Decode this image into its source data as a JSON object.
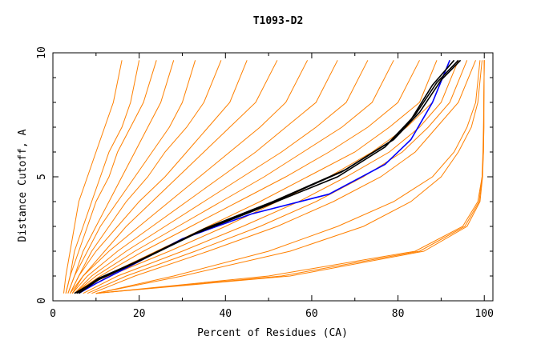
{
  "chart_data": {
    "type": "line",
    "title": "T1093-D2",
    "xlabel": "Percent of Residues (CA)",
    "ylabel": "Distance Cutoff, A",
    "xlim": [
      0,
      102
    ],
    "ylim": [
      0,
      10
    ],
    "xticks": [
      0,
      20,
      40,
      60,
      80,
      100
    ],
    "yticks": [
      0,
      5,
      10
    ],
    "grid": false,
    "legend": "none",
    "colors": {
      "bundle": "#ff8000",
      "highlight_blue": "#0000ff",
      "highlight_black": "#000000"
    },
    "series": [
      {
        "color": "#ff8000",
        "x": [
          2.5,
          3,
          4,
          5,
          6,
          8,
          10,
          12,
          14,
          16
        ],
        "y": [
          0.3,
          1,
          2,
          3,
          4,
          5,
          6,
          7,
          8,
          9.7
        ]
      },
      {
        "color": "#ff8000",
        "x": [
          3,
          4,
          5,
          7,
          9,
          11,
          13,
          16,
          18,
          20
        ],
        "y": [
          0.3,
          1,
          2,
          3,
          4,
          5,
          6,
          7,
          8,
          9.7
        ]
      },
      {
        "color": "#ff8000",
        "x": [
          3,
          4,
          6,
          8,
          10,
          13,
          15,
          18,
          21,
          24
        ],
        "y": [
          0.3,
          1,
          2,
          3,
          4,
          5,
          6,
          7,
          8,
          9.7
        ]
      },
      {
        "color": "#ff8000",
        "x": [
          3.5,
          5,
          7,
          10,
          13,
          16,
          19,
          22,
          25,
          28
        ],
        "y": [
          0.3,
          1,
          2,
          3,
          4,
          5,
          6,
          7,
          8,
          9.7
        ]
      },
      {
        "color": "#ff8000",
        "x": [
          3.5,
          5,
          8,
          11,
          15,
          19,
          23,
          27,
          30,
          33
        ],
        "y": [
          0.3,
          1,
          2,
          3,
          4,
          5,
          6,
          7,
          8,
          9.7
        ]
      },
      {
        "color": "#ff8000",
        "x": [
          4,
          6,
          9,
          13,
          17,
          22,
          26,
          31,
          35,
          39
        ],
        "y": [
          0.3,
          1,
          2,
          3,
          4,
          5,
          6,
          7,
          8,
          9.7
        ]
      },
      {
        "color": "#ff8000",
        "x": [
          4,
          6,
          10,
          15,
          20,
          26,
          31,
          36,
          41,
          45
        ],
        "y": [
          0.3,
          1,
          2,
          3,
          4,
          5,
          6,
          7,
          8,
          9.7
        ]
      },
      {
        "color": "#ff8000",
        "x": [
          4,
          7,
          12,
          17,
          23,
          29,
          35,
          41,
          47,
          52
        ],
        "y": [
          0.3,
          1,
          2,
          3,
          4,
          5,
          6,
          7,
          8,
          9.7
        ]
      },
      {
        "color": "#ff8000",
        "x": [
          4.5,
          7,
          13,
          20,
          27,
          34,
          41,
          48,
          54,
          59
        ],
        "y": [
          0.3,
          1,
          2,
          3,
          4,
          5,
          6,
          7,
          8,
          9.7
        ]
      },
      {
        "color": "#ff8000",
        "x": [
          4.5,
          8,
          15,
          23,
          31,
          39,
          47,
          54,
          61,
          66
        ],
        "y": [
          0.3,
          1,
          2,
          3,
          4,
          5,
          6,
          7,
          8,
          9.7
        ]
      },
      {
        "color": "#ff8000",
        "x": [
          5,
          9,
          17,
          26,
          35,
          44,
          53,
          61,
          68,
          73
        ],
        "y": [
          0.3,
          1,
          2,
          3,
          4,
          5,
          6,
          7,
          8,
          9.7
        ]
      },
      {
        "color": "#ff8000",
        "x": [
          5,
          10,
          19,
          29,
          39,
          49,
          58,
          67,
          74,
          79
        ],
        "y": [
          0.3,
          1,
          2,
          3,
          4,
          5,
          6,
          7,
          8,
          9.7
        ]
      },
      {
        "color": "#ff8000",
        "x": [
          5,
          11,
          21,
          32,
          43,
          54,
          64,
          73,
          80,
          85
        ],
        "y": [
          0.3,
          1,
          2,
          3,
          4,
          5,
          6,
          7,
          8,
          9.7
        ]
      },
      {
        "color": "#ff8000",
        "x": [
          6,
          12,
          24,
          36,
          48,
          59,
          70,
          78,
          85,
          89
        ],
        "y": [
          0.3,
          1,
          2,
          3,
          4,
          5,
          6,
          7,
          8,
          9.7
        ]
      },
      {
        "color": "#ff8000",
        "x": [
          6,
          13,
          27,
          40,
          52,
          64,
          74,
          82,
          88,
          92
        ],
        "y": [
          0.3,
          1,
          2,
          3,
          4,
          5,
          6,
          7,
          8,
          9.7
        ]
      },
      {
        "color": "#ff8000",
        "x": [
          7,
          15,
          30,
          44,
          57,
          68,
          78,
          85,
          90,
          94
        ],
        "y": [
          0.3,
          1,
          2,
          3,
          4,
          5,
          6,
          7,
          8,
          9.7
        ]
      },
      {
        "color": "#ff8000",
        "x": [
          8,
          17,
          33,
          48,
          61,
          72,
          81,
          87,
          92,
          96
        ],
        "y": [
          0.3,
          1,
          2,
          3,
          4,
          5,
          6,
          7,
          8,
          9.7
        ]
      },
      {
        "color": "#ff8000",
        "x": [
          9,
          19,
          36,
          52,
          65,
          76,
          84,
          89,
          94,
          98
        ],
        "y": [
          0.3,
          1,
          2,
          3,
          4,
          5,
          6,
          7,
          8,
          9.7
        ]
      },
      {
        "color": "#ff8000",
        "x": [
          10,
          28,
          50,
          66,
          79,
          88,
          93,
          96,
          98,
          99
        ],
        "y": [
          0.3,
          1,
          2,
          3,
          4,
          5,
          6,
          7,
          8,
          9.7
        ]
      },
      {
        "color": "#ff8000",
        "x": [
          10,
          30,
          55,
          72,
          83,
          90,
          94,
          97,
          98.5,
          99.5
        ],
        "y": [
          0.3,
          1,
          2,
          3,
          4,
          5,
          6,
          7,
          8,
          9.7
        ]
      },
      {
        "color": "#ff8000",
        "x": [
          10,
          50,
          84,
          95,
          98.5,
          99.5,
          99.8,
          99.9,
          99.9,
          100
        ],
        "y": [
          0.3,
          1,
          2,
          3,
          4,
          5,
          6,
          7,
          8,
          9.7
        ]
      },
      {
        "color": "#ff8000",
        "x": [
          10,
          55,
          86,
          96,
          99,
          99.6,
          99.8,
          99.9,
          99.9,
          100
        ],
        "y": [
          0.3,
          1,
          2,
          3,
          4,
          5,
          6,
          7,
          8,
          9.7
        ]
      },
      {
        "color": "#ff8000",
        "x": [
          10,
          53,
          85,
          95.5,
          98.8,
          99.5,
          99.7,
          99.8,
          99.9,
          100
        ],
        "y": [
          0.3,
          1,
          2,
          3,
          4,
          5,
          6,
          7,
          8,
          9.7
        ]
      },
      {
        "color": "#0000ff",
        "x": [
          6,
          10,
          19,
          30,
          46,
          64,
          77,
          83,
          88,
          92
        ],
        "y": [
          0.3,
          0.7,
          1.5,
          2.5,
          3.5,
          4.3,
          5.5,
          6.5,
          8,
          9.7
        ]
      },
      {
        "color": "#000000",
        "x": [
          5,
          10,
          20,
          33,
          49,
          66,
          77,
          83,
          88,
          93
        ],
        "y": [
          0.3,
          0.8,
          1.6,
          2.7,
          3.8,
          5,
          6.2,
          7.3,
          8.7,
          9.7
        ]
      },
      {
        "color": "#000000",
        "x": [
          5.5,
          10.5,
          21,
          34,
          50,
          67,
          78,
          84,
          89,
          94
        ],
        "y": [
          0.3,
          0.9,
          1.7,
          2.8,
          3.9,
          5.2,
          6.4,
          7.5,
          8.8,
          9.7
        ]
      },
      {
        "color": "#000000",
        "x": [
          6,
          11,
          22,
          35,
          51,
          68,
          79,
          85,
          90,
          94.5
        ],
        "y": [
          0.3,
          0.9,
          1.8,
          2.9,
          4,
          5.3,
          6.5,
          7.6,
          8.9,
          9.7
        ]
      }
    ]
  }
}
